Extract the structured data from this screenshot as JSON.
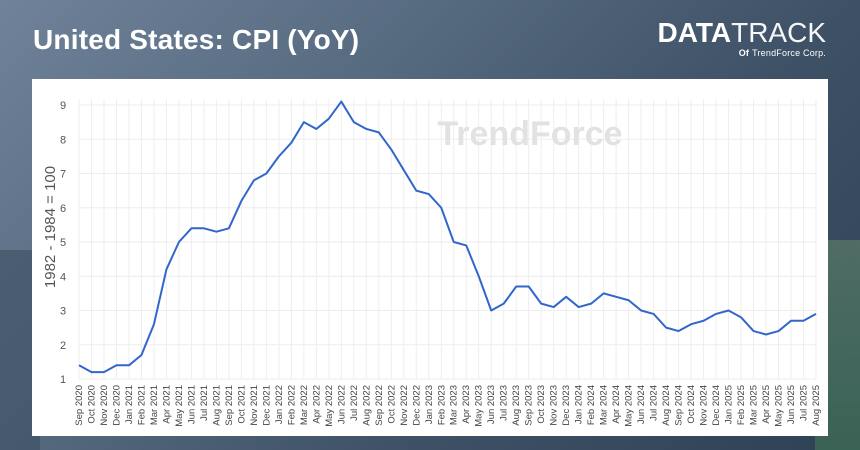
{
  "header": {
    "title": "United States: CPI (YoY)",
    "brand_main_bold": "DATA",
    "brand_main_thin": "TRACK",
    "brand_sub_of": "Of",
    "brand_sub_company": "TrendForce Corp."
  },
  "watermark": "TrendForce",
  "colors": {
    "line": "#3366cc",
    "panel": "#ffffff",
    "grid": "#eeeeee"
  },
  "chart_data": {
    "type": "line",
    "title": "",
    "ylabel": "1982 - 1984 = 100",
    "xlabel": "",
    "ylim": [
      1,
      9
    ],
    "yticks": [
      1,
      2,
      3,
      4,
      5,
      6,
      7,
      8,
      9
    ],
    "grid": true,
    "categories": [
      "Sep 2020",
      "Oct 2020",
      "Nov 2020",
      "Dec 2020",
      "Jan 2021",
      "Feb 2021",
      "Mar 2021",
      "Apr 2021",
      "May 2021",
      "Jun 2021",
      "Jul 2021",
      "Aug 2021",
      "Sep 2021",
      "Oct 2021",
      "Nov 2021",
      "Dec 2021",
      "Jan 2022",
      "Feb 2022",
      "Mar 2022",
      "Apr 2022",
      "May 2022",
      "Jun 2022",
      "Jul 2022",
      "Aug 2022",
      "Sep 2022",
      "Oct 2022",
      "Nov 2022",
      "Dec 2022",
      "Jan 2023",
      "Feb 2023",
      "Mar 2023",
      "Apr 2023",
      "May 2023",
      "Jun 2023",
      "Jul 2023",
      "Aug 2023",
      "Sep 2023",
      "Oct 2023",
      "Nov 2023",
      "Dec 2023",
      "Jan 2024",
      "Feb 2024",
      "Mar 2024",
      "Apr 2024",
      "May 2024",
      "Jun 2024",
      "Jul 2024",
      "Aug 2024",
      "Sep 2024",
      "Oct 2024",
      "Nov 2024",
      "Dec 2024",
      "Jan 2025",
      "Feb 2025",
      "Mar 2025",
      "Apr 2025",
      "May 2025",
      "Jun 2025",
      "Jul 2025",
      "Aug 2025"
    ],
    "series": [
      {
        "values": [
          1.4,
          1.2,
          1.2,
          1.4,
          1.4,
          1.7,
          2.6,
          4.2,
          5.0,
          5.4,
          5.4,
          5.3,
          5.4,
          6.2,
          6.8,
          7.0,
          7.5,
          7.9,
          8.5,
          8.3,
          8.6,
          9.1,
          8.5,
          8.3,
          8.2,
          7.7,
          7.1,
          6.5,
          6.4,
          6.0,
          5.0,
          4.9,
          4.0,
          3.0,
          3.2,
          3.7,
          3.7,
          3.2,
          3.1,
          3.4,
          3.1,
          3.2,
          3.5,
          3.4,
          3.3,
          3.0,
          2.9,
          2.5,
          2.4,
          2.6,
          2.7,
          2.9,
          3.0,
          2.8,
          2.4,
          2.3,
          2.4,
          2.7,
          2.7,
          2.9
        ]
      }
    ]
  }
}
